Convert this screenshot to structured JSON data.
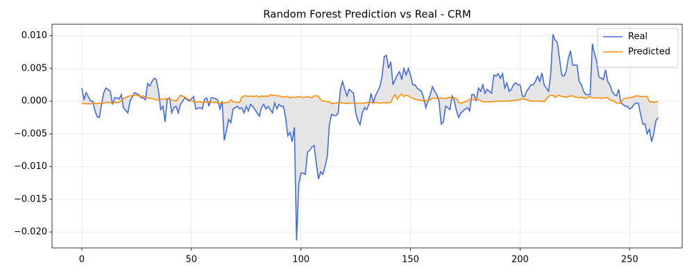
{
  "chart_data": {
    "type": "line",
    "title": "Random Forest Prediction vs Real - CRM",
    "x": [
      0,
      1,
      2,
      4,
      5,
      6,
      7,
      8,
      9,
      10,
      11,
      13,
      14,
      15,
      16,
      17,
      18,
      19,
      21,
      22,
      24,
      26,
      27,
      28,
      29,
      30,
      31,
      32,
      33,
      34,
      35,
      36,
      37,
      38,
      39,
      40,
      41,
      42,
      43,
      44,
      45,
      47,
      49,
      51,
      52,
      54,
      55,
      56,
      57,
      58,
      59,
      60,
      62,
      63,
      64,
      65,
      66,
      67,
      68,
      69,
      71,
      72,
      73,
      74,
      75,
      76,
      77,
      78,
      80,
      81,
      82,
      83,
      84,
      85,
      86,
      87,
      88,
      89,
      90,
      91,
      92,
      93,
      94,
      95,
      96,
      97,
      98,
      99,
      100,
      101,
      102,
      103,
      104,
      105,
      106,
      107,
      108,
      109,
      110,
      111,
      112,
      113,
      114,
      115,
      116,
      117,
      118,
      119,
      120,
      121,
      122,
      124,
      125,
      126,
      127,
      128,
      129,
      130,
      131,
      132,
      133,
      134,
      136,
      137,
      138,
      139,
      140,
      141,
      142,
      143,
      144,
      145,
      146,
      147,
      148,
      149,
      150,
      151,
      152,
      153,
      155,
      156,
      157,
      158,
      159,
      160,
      161,
      162,
      163,
      164,
      165,
      166,
      167,
      168,
      169,
      170,
      171,
      172,
      173,
      175,
      176,
      177,
      178,
      179,
      180,
      181,
      182,
      183,
      184,
      185,
      186,
      187,
      188,
      189,
      190,
      191,
      192,
      193,
      194,
      195,
      196,
      197,
      198,
      199,
      200,
      201,
      202,
      203,
      204,
      205,
      206,
      207,
      208,
      209,
      210,
      211,
      212,
      213,
      214,
      215,
      216,
      217,
      218,
      219,
      220,
      221,
      222,
      223,
      224,
      225,
      226,
      227,
      228,
      229,
      230,
      231,
      232,
      233,
      234,
      235,
      236,
      237,
      238,
      239,
      240,
      241,
      242,
      243,
      244,
      245,
      246,
      247,
      248,
      249,
      250,
      251,
      252,
      253,
      254,
      255,
      256,
      257,
      258,
      259,
      260,
      261,
      262,
      263
    ],
    "series": [
      {
        "name": "Real",
        "color": "#4169e1",
        "values": [
          0.002,
          0.0003,
          0.0013,
          0,
          0,
          -0.0015,
          -0.0024,
          -0.0025,
          -0.0005,
          0.0013,
          0.002,
          0.0015,
          -0.0005,
          0.0005,
          0.0005,
          0.0003,
          0.001,
          -0.001,
          -0.0018,
          0,
          0.0013,
          0.001,
          0.0005,
          0.0005,
          0.0002,
          0.0027,
          0.0023,
          0.003,
          0.0035,
          0.0033,
          0.0015,
          -0.0013,
          -0.0008,
          -0.0032,
          0.0003,
          0.0005,
          -0.0018,
          -0.001,
          -0.0008,
          -0.0018,
          -0.0005,
          0.0005,
          0,
          0.0007,
          -0.0012,
          -0.001,
          -0.0012,
          0.0003,
          0.0005,
          -0.0008,
          0.0005,
          0.0005,
          0.0002,
          -0.0012,
          0,
          -0.006,
          -0.0045,
          -0.0028,
          -0.0033,
          -0.0012,
          -0.0008,
          -0.0012,
          -0.001,
          -0.0018,
          -0.0008,
          -0.0015,
          -0.0005,
          -0.0008,
          -0.0018,
          -0.0023,
          -0.001,
          -0.0005,
          -0.0012,
          -0.0008,
          -0.0013,
          -0.0018,
          -0.0003,
          -0.0012,
          -0.0005,
          -0.0008,
          -0.0008,
          -0.0025,
          -0.0053,
          -0.0048,
          -0.0062,
          -0.004,
          -0.0213,
          -0.0127,
          -0.011,
          -0.011,
          -0.0112,
          -0.0078,
          -0.0075,
          -0.007,
          -0.0068,
          -0.0095,
          -0.0119,
          -0.0108,
          -0.0112,
          -0.01,
          -0.0085,
          -0.0035,
          -0.002,
          -0.0022,
          -0.0022,
          -0.0018,
          0.0018,
          0.003,
          0.0018,
          0.0008,
          0.0018,
          0.0012,
          -0.0018,
          -0.003,
          -0.0036,
          -0.0018,
          -0.001,
          -0.0013,
          -0.0005,
          0.0012,
          -0.0002,
          0.0008,
          0.0022,
          0.0037,
          0.0068,
          0.007,
          0.005,
          0.006,
          0.0025,
          0.0033,
          0.004,
          0.0045,
          0.0033,
          0.005,
          0.004,
          0.005,
          0.004,
          0.0025,
          0.0025,
          0.002,
          0.0015,
          0.0005,
          -0.001,
          0,
          0.001,
          0.0022,
          0.0015,
          0.001,
          0,
          -0.0035,
          -0.0032,
          -0.0008,
          -0.001,
          -0.0013,
          0.0008,
          0,
          -0.0015,
          -0.0025,
          -0.0018,
          -0.0012,
          -0.001,
          -0.0015,
          0.001,
          0.001,
          0,
          0.002,
          0.0015,
          0.0025,
          0.0012,
          0.0018,
          0.0015,
          0.0012,
          0.004,
          0.0038,
          0.0042,
          0.0035,
          0.0042,
          0.002,
          0.0028,
          0.0015,
          0.0018,
          0.0025,
          0.0028,
          0.0025,
          0.0025,
          0.0008,
          0.0007,
          0.0015,
          0.002,
          0.0025,
          0.0025,
          0.003,
          0.0038,
          0.003,
          0.0043,
          0.0025,
          0.002,
          0.0015,
          0.0042,
          0.0102,
          0.0093,
          0.009,
          0.0065,
          0.004,
          0.0038,
          0.0045,
          0.0065,
          0.0077,
          0.0055,
          0.0055,
          0.0055,
          0.003,
          0.0025,
          0.0015,
          0.001,
          0.001,
          0.001,
          0.0088,
          0.0072,
          0.006,
          0.0037,
          0.0035,
          0.0033,
          0.0048,
          0.003,
          0.0025,
          0.0015,
          0.001,
          0.0008,
          0.0018,
          -0.0003,
          -0.0005,
          -0.0008,
          -0.0008,
          -0.0012,
          -0.001,
          -0.0005,
          -0.0003,
          -0.0003,
          -0.002,
          -0.0035,
          -0.0035,
          -0.005,
          -0.0043,
          -0.0062,
          -0.005,
          -0.003,
          -0.0025
        ]
      },
      {
        "name": "Predicted",
        "color": "#ff8c00",
        "values": [
          -0.0003,
          -0.0004,
          -0.0004,
          -0.0004,
          -0.0004,
          -0.0003,
          -0.0004,
          -0.0003,
          -0.0004,
          -0.0003,
          -0.0002,
          -0.0002,
          -0.0003,
          -0.0002,
          -0.0002,
          -0.0002,
          0,
          0.0004,
          0.0007,
          0.0008,
          0.0009,
          0.0008,
          0.0007,
          0.0008,
          0.0006,
          0.0005,
          0.0004,
          0.0004,
          0.0003,
          0.0002,
          0.0002,
          0.0003,
          0.0003,
          0.0003,
          0.0004,
          0.0003,
          0.0002,
          0.0001,
          0,
          0.0004,
          0.0009,
          0.0006,
          0.0002,
          -0.0001,
          -0.0001,
          -0.0001,
          -0.0002,
          -0.0002,
          -0.0001,
          -0.0001,
          -0.0002,
          -0.0002,
          -0.0002,
          -0.0003,
          -0.0003,
          -0.0003,
          -0.0002,
          -0.0002,
          0.0002,
          -0.0001,
          -0.0002,
          -0.0002,
          0.0006,
          0.0008,
          0.0008,
          0.0007,
          0.0008,
          0.0007,
          0.0008,
          0.0006,
          0.0008,
          0.0007,
          0.0008,
          0.0007,
          0.001,
          0.0009,
          0.0009,
          0.0008,
          0.0008,
          0.0007,
          0.0006,
          0.0007,
          0.0007,
          0.0005,
          0.0006,
          0.0006,
          0.0006,
          0.0007,
          0.0006,
          0.0006,
          0.0006,
          0.0007,
          0.0006,
          0.0005,
          0.0008,
          0.0008,
          0.0007,
          0.0002,
          0,
          0,
          -0.0001,
          -0.0001,
          -0.0004,
          -0.0003,
          -0.0003,
          -0.0002,
          -0.0002,
          -0.0003,
          -0.0003,
          -0.0004,
          -0.0003,
          -0.0003,
          -0.0003,
          -0.0003,
          -0.0003,
          -0.0003,
          -0.0003,
          -0.0002,
          -0.0002,
          -0.0002,
          -0.0003,
          -0.0002,
          -0.0003,
          -0.0003,
          -0.0002,
          -0.0003,
          -0.0002,
          -0.0002,
          0.0005,
          0.001,
          0.0003,
          0.0008,
          0.0011,
          0.0007,
          0.0009,
          0.0008,
          0.0006,
          0.0004,
          0.0003,
          0.0002,
          0.0001,
          0,
          0.0001,
          0.0001,
          0.0002,
          0.0005,
          0.0004,
          0.0004,
          0.0005,
          0.0005,
          0.0004,
          0.0004,
          0.0005,
          0.0006,
          0.0004,
          0.0005,
          0.0004,
          -0.0002,
          -0.0003,
          -0.0001,
          0,
          0.0003,
          0.0003,
          0.0002,
          0.0004,
          0.0002,
          0.0001,
          -0.0001,
          -0.0001,
          -0.0001,
          -0.0001,
          -0.0001,
          -0.0001,
          0,
          0,
          0,
          0,
          0,
          0,
          0.0001,
          0,
          0.0001,
          0.0001,
          0.0002,
          0.0002,
          0.0004,
          0.0003,
          0.0002,
          0.0001,
          0,
          0,
          0,
          0,
          0,
          0,
          -0.0001,
          0.0003,
          0.0007,
          0.0009,
          0.0009,
          0.0006,
          0.0008,
          0.0009,
          0.0007,
          0.0007,
          0.0006,
          0.0007,
          0.0008,
          0.0008,
          0.0006,
          0.0006,
          0.0005,
          0.0006,
          0.0005,
          0.0004,
          0.0006,
          0.0007,
          0.0005,
          0.0005,
          0.0005,
          0.0005,
          0.0004,
          0.0005,
          0.0005,
          0.0005,
          0.0002,
          0.0001,
          0,
          -0.0003,
          -0.0003,
          -0.0003,
          0.0003,
          0.0004,
          0.0005,
          0.0005,
          0.0006,
          0.0007,
          0.0008,
          0.0008,
          0.0007,
          0.0007,
          0.0007,
          0.0007,
          -0.0001,
          -0.0001,
          -0.0002,
          -0.0001,
          -0.0001
        ]
      }
    ],
    "fill_between": true,
    "fill_color": "#e5e5e5",
    "xlim": [
      -13.6,
      274
    ],
    "xticks": [
      0,
      50,
      100,
      150,
      200,
      250
    ],
    "ylim": [
      -0.02243,
      0.01175
    ],
    "yticks": [
      {
        "value": 0.01,
        "label": "0.010"
      },
      0.005,
      {
        "value": 0,
        "label": "0.000"
      },
      {
        "value": -0.005,
        "label": "−0.005"
      },
      {
        "value": -0.01,
        "label": "−0.010"
      },
      {
        "value": -0.015,
        "label": "−0.015"
      },
      {
        "value": -0.02,
        "label": "−0.020"
      }
    ],
    "grid": true,
    "legend": "upper right"
  }
}
